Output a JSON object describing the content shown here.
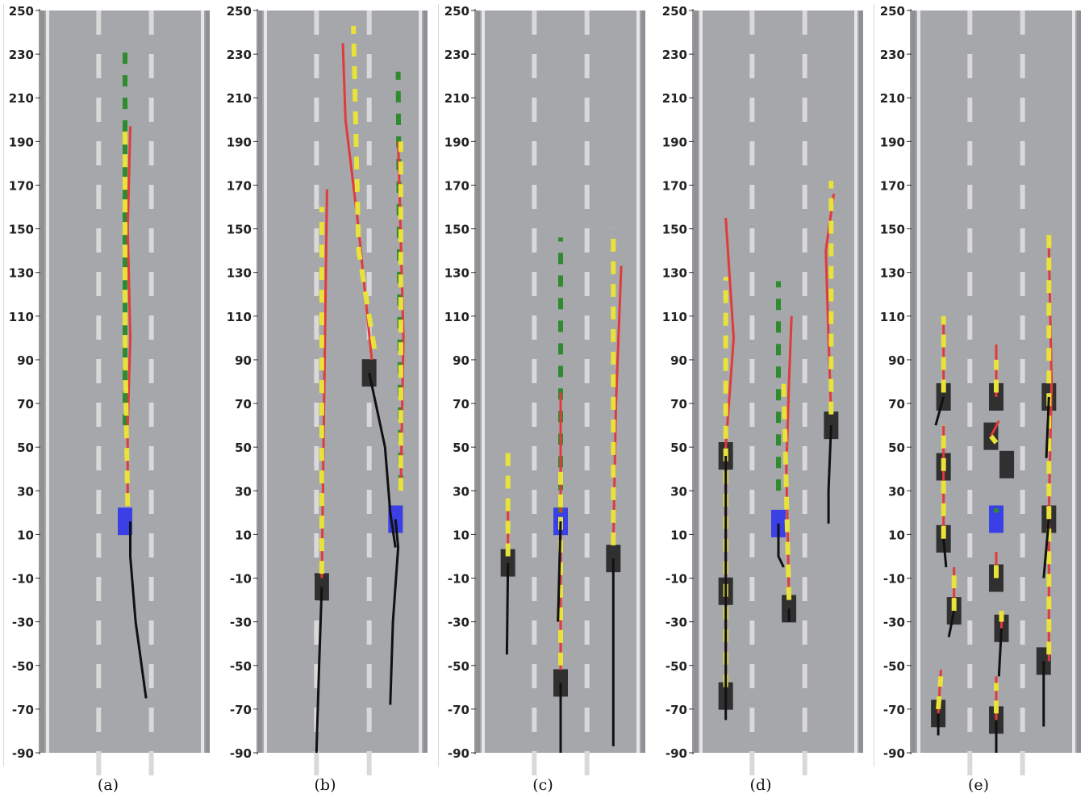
{
  "figure": {
    "y_ticks": [
      "250",
      "230",
      "210",
      "190",
      "170",
      "150",
      "130",
      "110",
      "90",
      "70",
      "50",
      "30",
      "10",
      "-10",
      "-30",
      "-50",
      "-70",
      "-90"
    ],
    "colors": {
      "road": "#a5a7ab",
      "shoulder": "#8e9094",
      "edge_line": "#e6e6e6",
      "lane_dash": "#d9d9d9",
      "ego": "#3b3fe6",
      "vehicle": "#303030",
      "history": "#111111",
      "prediction": "#e23a3a",
      "ground_truth": "#e8e23a",
      "plan": "#2e8b2e"
    },
    "panels": [
      {
        "caption": "(a)",
        "ego": [
          {
            "lane": 2,
            "y": 16
          }
        ],
        "vehicles": [],
        "history": [
          [
            [
              2.1,
              16
            ],
            [
              2.1,
              0
            ],
            [
              2.2,
              -30
            ],
            [
              2.4,
              -65
            ]
          ]
        ],
        "predictions": [
          [
            [
              2.05,
              23
            ],
            [
              2.05,
              60
            ],
            [
              2.1,
              100
            ],
            [
              2.05,
              150
            ],
            [
              2.1,
              197
            ]
          ]
        ],
        "ground_truth": [
          [
            [
              2.05,
              23
            ],
            [
              2.0,
              100
            ],
            [
              2.0,
              195
            ]
          ]
        ],
        "plan": [
          [
            [
              2.0,
              60
            ],
            [
              2.0,
              235
            ]
          ]
        ]
      },
      {
        "caption": "(b)",
        "ego": [
          {
            "lane": 3,
            "y": 17
          }
        ],
        "vehicles": [
          {
            "lane": 1.6,
            "y": -14
          },
          {
            "lane": 2.5,
            "y": 84
          }
        ],
        "history": [
          [
            [
              1.6,
              -14
            ],
            [
              1.55,
              -50
            ],
            [
              1.5,
              -90
            ]
          ],
          [
            [
              3.0,
              17
            ],
            [
              3.05,
              4
            ],
            [
              2.95,
              -30
            ],
            [
              2.9,
              -68
            ]
          ],
          [
            [
              2.5,
              84
            ],
            [
              2.8,
              50
            ],
            [
              2.9,
              20
            ],
            [
              3.0,
              4
            ]
          ]
        ],
        "predictions": [
          [
            [
              1.6,
              -10
            ],
            [
              1.65,
              80
            ],
            [
              1.7,
              168
            ]
          ],
          [
            [
              3.1,
              32
            ],
            [
              3.15,
              100
            ],
            [
              3.05,
              190
            ]
          ],
          [
            [
              2.55,
              90
            ],
            [
              2.3,
              150
            ],
            [
              2.05,
              200
            ],
            [
              2.0,
              235
            ]
          ]
        ],
        "ground_truth": [
          [
            [
              1.6,
              -8
            ],
            [
              1.6,
              160
            ]
          ],
          [
            [
              3.1,
              30
            ],
            [
              3.1,
              190
            ]
          ],
          [
            [
              2.6,
              95
            ],
            [
              2.3,
              140
            ],
            [
              2.2,
              243
            ]
          ]
        ],
        "plan": [
          [
            [
              3.1,
              32
            ],
            [
              3.05,
              222
            ]
          ]
        ]
      },
      {
        "caption": "(c)",
        "ego": [
          {
            "lane": 2,
            "y": 16
          }
        ],
        "vehicles": [
          {
            "lane": 1,
            "y": -3
          },
          {
            "lane": 2,
            "y": -58
          },
          {
            "lane": 3,
            "y": -1
          }
        ],
        "history": [
          [
            [
              1,
              -3
            ],
            [
              0.98,
              -45
            ]
          ],
          [
            [
              2,
              -58
            ],
            [
              2,
              -90
            ]
          ],
          [
            [
              2,
              16
            ],
            [
              1.95,
              -30
            ]
          ],
          [
            [
              3,
              -1
            ],
            [
              3,
              -87
            ]
          ]
        ],
        "predictions": [
          [
            [
              1,
              0
            ],
            [
              1,
              24
            ]
          ],
          [
            [
              2,
              -52
            ],
            [
              2,
              10
            ]
          ],
          [
            [
              2,
              20
            ],
            [
              2,
              75
            ]
          ],
          [
            [
              3,
              5
            ],
            [
              3.05,
              70
            ],
            [
              3.15,
              133
            ]
          ]
        ],
        "ground_truth": [
          [
            [
              1,
              0
            ],
            [
              1,
              50
            ]
          ],
          [
            [
              2,
              -50
            ],
            [
              2,
              40
            ]
          ],
          [
            [
              3,
              5
            ],
            [
              3,
              150
            ]
          ]
        ],
        "plan": [
          [
            [
              2,
              20
            ],
            [
              2,
              146
            ]
          ]
        ]
      },
      {
        "caption": "(d)",
        "ego": [
          {
            "lane": 2,
            "y": 15
          }
        ],
        "vehicles": [
          {
            "lane": 1,
            "y": 46
          },
          {
            "lane": 1,
            "y": -16
          },
          {
            "lane": 1,
            "y": -64
          },
          {
            "lane": 2.2,
            "y": -24
          },
          {
            "lane": 3,
            "y": 60
          }
        ],
        "history": [
          [
            [
              1,
              46
            ],
            [
              1,
              -10
            ],
            [
              1,
              -75
            ]
          ],
          [
            [
              2.2,
              -24
            ],
            [
              2.2,
              -30
            ]
          ],
          [
            [
              2,
              15
            ],
            [
              2,
              0
            ],
            [
              2.1,
              -5
            ]
          ],
          [
            [
              3,
              60
            ],
            [
              2.95,
              30
            ],
            [
              2.95,
              15
            ]
          ]
        ],
        "predictions": [
          [
            [
              1,
              -60
            ],
            [
              1,
              0
            ],
            [
              1,
              50
            ],
            [
              1.15,
              100
            ],
            [
              1.0,
              155
            ]
          ],
          [
            [
              2.2,
              -20
            ],
            [
              2.15,
              40
            ],
            [
              2.2,
              80
            ],
            [
              2.25,
              110
            ]
          ],
          [
            [
              3,
              65
            ],
            [
              2.95,
              100
            ],
            [
              2.9,
              140
            ],
            [
              3.05,
              166
            ]
          ]
        ],
        "ground_truth": [
          [
            [
              1,
              -60
            ],
            [
              1,
              128
            ]
          ],
          [
            [
              2.2,
              -20
            ],
            [
              2.1,
              80
            ]
          ],
          [
            [
              3,
              65
            ],
            [
              3,
              172
            ]
          ]
        ],
        "plan": [
          [
            [
              2,
              30
            ],
            [
              2,
              126
            ]
          ]
        ]
      },
      {
        "caption": "(e)",
        "ego": [
          {
            "lane": 2,
            "y": 17
          }
        ],
        "vehicles": [
          {
            "lane": 1,
            "y": 73
          },
          {
            "lane": 1,
            "y": 41
          },
          {
            "lane": 1,
            "y": 8
          },
          {
            "lane": 1.2,
            "y": -25
          },
          {
            "lane": 0.9,
            "y": -72
          },
          {
            "lane": 2,
            "y": 73
          },
          {
            "lane": 1.9,
            "y": 55
          },
          {
            "lane": 2.2,
            "y": 42
          },
          {
            "lane": 2,
            "y": -10
          },
          {
            "lane": 2.1,
            "y": -33
          },
          {
            "lane": 2,
            "y": -75
          },
          {
            "lane": 3,
            "y": 73
          },
          {
            "lane": 3,
            "y": 17
          },
          {
            "lane": 2.9,
            "y": -48
          }
        ],
        "history": [
          [
            [
              1,
              73
            ],
            [
              0.85,
              60
            ]
          ],
          [
            [
              1,
              8
            ],
            [
              1.05,
              -5
            ]
          ],
          [
            [
              1.2,
              -25
            ],
            [
              1.1,
              -37
            ]
          ],
          [
            [
              0.9,
              -72
            ],
            [
              0.9,
              -82
            ]
          ],
          [
            [
              2,
              -75
            ],
            [
              2,
              -90
            ]
          ],
          [
            [
              2.1,
              -33
            ],
            [
              2.05,
              -55
            ]
          ],
          [
            [
              3,
              73
            ],
            [
              2.95,
              45
            ]
          ],
          [
            [
              3,
              17
            ],
            [
              2.9,
              -10
            ]
          ],
          [
            [
              2.9,
              -48
            ],
            [
              2.9,
              -78
            ]
          ]
        ],
        "predictions": [
          [
            [
              1,
              75
            ],
            [
              1,
              108
            ]
          ],
          [
            [
              1,
              8
            ],
            [
              1,
              60
            ]
          ],
          [
            [
              1.2,
              -25
            ],
            [
              1.2,
              -5
            ]
          ],
          [
            [
              0.9,
              -72
            ],
            [
              0.95,
              -52
            ]
          ],
          [
            [
              2,
              -75
            ],
            [
              2,
              -55
            ]
          ],
          [
            [
              2,
              -10
            ],
            [
              2,
              2
            ]
          ],
          [
            [
              2.1,
              -33
            ],
            [
              2.1,
              -28
            ]
          ],
          [
            [
              1.9,
              55
            ],
            [
              2.05,
              62
            ]
          ],
          [
            [
              2,
              73
            ],
            [
              2,
              97
            ]
          ],
          [
            [
              3,
              -48
            ],
            [
              3,
              20
            ],
            [
              3.05,
              80
            ],
            [
              3,
              141
            ]
          ]
        ],
        "ground_truth": [
          [
            [
              1,
              75
            ],
            [
              1,
              110
            ]
          ],
          [
            [
              1,
              8
            ],
            [
              1,
              60
            ]
          ],
          [
            [
              1.2,
              -25
            ],
            [
              1.2,
              -5
            ]
          ],
          [
            [
              0.9,
              -70
            ],
            [
              0.95,
              -55
            ]
          ],
          [
            [
              2,
              -72
            ],
            [
              2,
              -58
            ]
          ],
          [
            [
              2,
              -10
            ],
            [
              2,
              0
            ]
          ],
          [
            [
              2.1,
              -30
            ],
            [
              2.1,
              -25
            ]
          ],
          [
            [
              1.9,
              55
            ],
            [
              2.0,
              52
            ]
          ],
          [
            [
              2,
              75
            ],
            [
              2,
              90
            ]
          ],
          [
            [
              3,
              -45
            ],
            [
              3,
              149
            ]
          ]
        ],
        "plan": [
          [
            [
              2,
              20
            ],
            [
              2,
              22
            ]
          ]
        ]
      }
    ]
  }
}
